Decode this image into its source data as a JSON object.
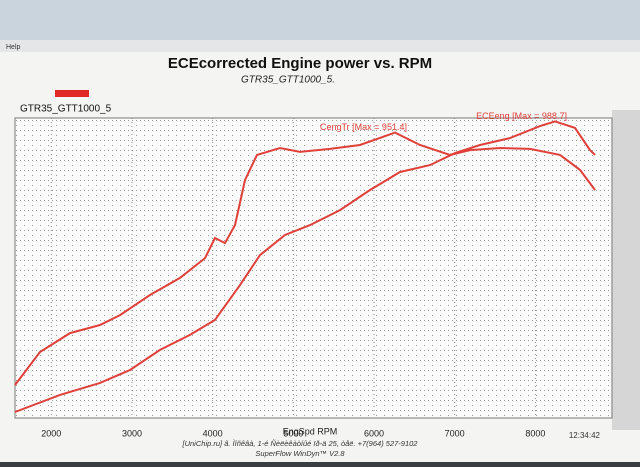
{
  "menu": "Help",
  "chart_data": {
    "type": "line",
    "title": "ECEcorrected Engine power vs. RPM",
    "subtitle": "GTR35_GTT1000_5.",
    "legend": {
      "label": "GTR35_GTT1000_5",
      "color": "#e02828"
    },
    "x_label": "EngSpd  RPM",
    "xlim": [
      1550,
      8950
    ],
    "xticks": [
      2000,
      3000,
      4000,
      5000,
      6000,
      7000,
      8000
    ],
    "ylim": [
      0,
      1000
    ],
    "grid": true,
    "series": [
      {
        "color": "#e0403a",
        "x": [
          1550,
          2108,
          2604,
          2976,
          3347,
          3719,
          4029,
          4339,
          4587,
          4897,
          5207,
          5578,
          5950,
          6322,
          6694,
          7004,
          7314,
          7686,
          8058,
          8243,
          8491,
          8677,
          8739
        ],
        "values": [
          20,
          77,
          117,
          160,
          227,
          277,
          327,
          443,
          543,
          610,
          643,
          693,
          760,
          820,
          843,
          883,
          910,
          933,
          973,
          988.7,
          967,
          893,
          877
        ]
      },
      {
        "color": "#e0403a",
        "x": [
          1550,
          1860,
          2232,
          2604,
          2851,
          3223,
          3595,
          3905,
          4029,
          4153,
          4277,
          4401,
          4550,
          4835,
          5083,
          5454,
          5826,
          6260,
          6570,
          6942,
          7190,
          7562,
          7933,
          8305,
          8553,
          8739
        ],
        "values": [
          110,
          220,
          283,
          310,
          343,
          410,
          467,
          533,
          600,
          583,
          643,
          793,
          877,
          900,
          887,
          897,
          910,
          951.4,
          910,
          877,
          893,
          900,
          897,
          877,
          827,
          760
        ]
      }
    ],
    "annotations": [
      "ECEeng [Max = 988.7]",
      "CengTr [Max = 951.4]"
    ],
    "footer": [
      "[UniChip.ru] ã. Ìîñêâà, 1-é Ñèëèêàòíûé ïð-ä 25, òåë. +7(964) 527-9102",
      "SuperFlow WinDyn™ V2.8"
    ],
    "clock": "12:34:42"
  }
}
